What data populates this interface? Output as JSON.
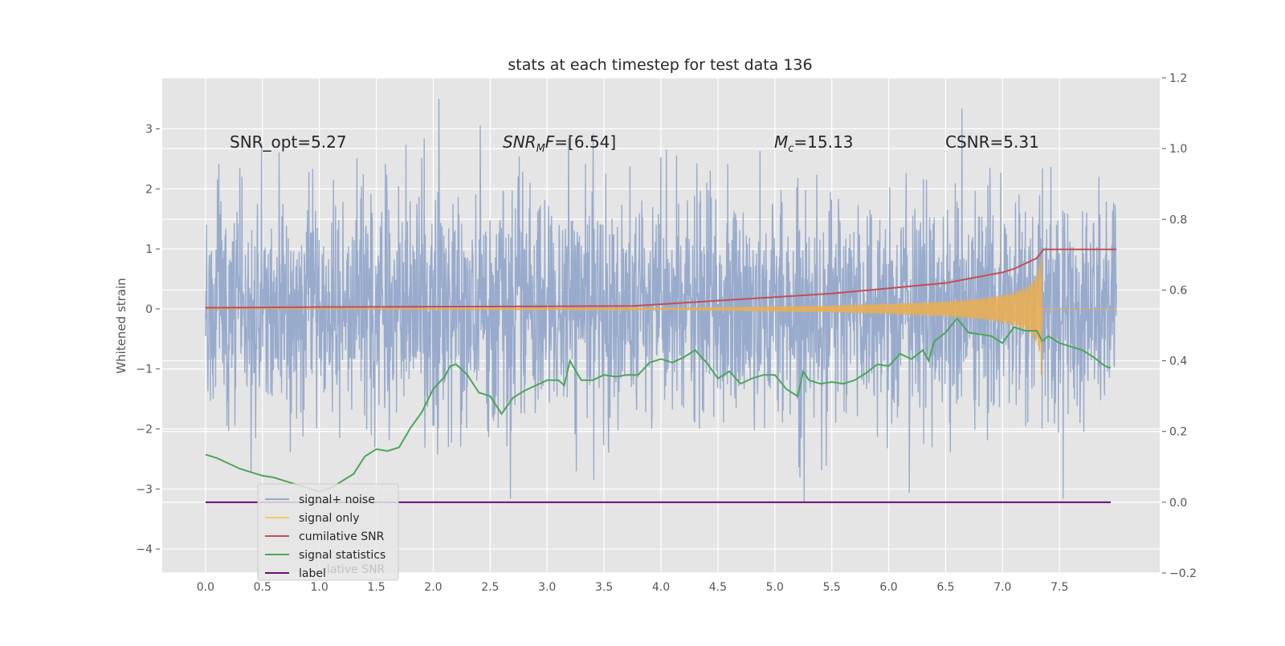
{
  "chart_data": {
    "type": "line",
    "title": "stats at each timestep for test data 136",
    "ylabel": "Whitened strain",
    "xlabel": "",
    "xlim": [
      -0.38,
      8.38
    ],
    "ylim": [
      -4.4,
      3.85
    ],
    "y2lim": [
      -0.2,
      1.2
    ],
    "x_ticks": [
      "0.0",
      "0.5",
      "1.0",
      "1.5",
      "2.0",
      "2.5",
      "3.0",
      "3.5",
      "4.0",
      "4.5",
      "5.0",
      "5.5",
      "6.0",
      "6.5",
      "7.0",
      "7.5"
    ],
    "y_ticks": [
      "−4",
      "−3",
      "−2",
      "−1",
      "0",
      "1",
      "2",
      "3"
    ],
    "y2_ticks": [
      "−0.2",
      "0.0",
      "0.2",
      "0.4",
      "0.6",
      "0.8",
      "1.0",
      "1.2"
    ],
    "grid": true,
    "legend_position": "lower-left",
    "annotations": {
      "snr_opt": "SNR_opt=5.27",
      "snr_mf_label": "SNR",
      "snr_mf_sub": "M",
      "snr_mf_f": "F",
      "snr_mf_value": "=[6.54]",
      "mc_label": "M",
      "mc_sub": "c",
      "mc_value": "=15.13",
      "csnr": "CSNR=5.31"
    },
    "legend": [
      {
        "label": "signal+ noise",
        "color": "#94a8cb"
      },
      {
        "label": "signal only",
        "color": "#f5c85a"
      },
      {
        "label": "cumilative SNR",
        "color": "#c44e52"
      },
      {
        "label": "signal statistics",
        "color": "#4ca55a"
      },
      {
        "label": "label",
        "color": "#6a0a80"
      }
    ],
    "legend_ghost_text": "lative SNR",
    "series": [
      {
        "name": "signal+ noise",
        "axis": "left",
        "color": "#94a8cb",
        "x_range": [
          0.0,
          8.0
        ],
        "y_range": [
          -4.05,
          3.5
        ],
        "note": "dense noise band, typical range about -1.7 to 1.6"
      },
      {
        "name": "signal only",
        "axis": "left",
        "color": "#e8ae55",
        "x": [
          0.0,
          3.6,
          4.5,
          5.5,
          6.0,
          6.5,
          6.8,
          7.0,
          7.1,
          7.2,
          7.25,
          7.3,
          7.34,
          7.35,
          8.0
        ],
        "amplitude": [
          0.0,
          0.01,
          0.03,
          0.06,
          0.09,
          0.13,
          0.18,
          0.24,
          0.29,
          0.37,
          0.44,
          0.58,
          0.85,
          0.0,
          0.0
        ]
      },
      {
        "name": "cumilative SNR",
        "axis": "right",
        "color": "#c44e52",
        "x": [
          0.0,
          1.0,
          2.0,
          3.0,
          3.75,
          4.0,
          4.5,
          5.0,
          5.5,
          6.0,
          6.5,
          6.75,
          7.0,
          7.1,
          7.2,
          7.3,
          7.36,
          8.0
        ],
        "y": [
          0.55,
          0.552,
          0.553,
          0.554,
          0.555,
          0.56,
          0.57,
          0.58,
          0.59,
          0.605,
          0.62,
          0.635,
          0.65,
          0.66,
          0.675,
          0.69,
          0.715,
          0.715
        ]
      },
      {
        "name": "signal statistics",
        "axis": "right",
        "color": "#4ca55a",
        "x": [
          0.0,
          0.1,
          0.2,
          0.3,
          0.4,
          0.5,
          0.6,
          0.7,
          0.8,
          0.9,
          1.0,
          1.1,
          1.2,
          1.3,
          1.4,
          1.5,
          1.6,
          1.7,
          1.8,
          1.9,
          2.0,
          2.1,
          2.15,
          2.2,
          2.3,
          2.4,
          2.5,
          2.55,
          2.6,
          2.7,
          2.8,
          2.9,
          3.0,
          3.1,
          3.15,
          3.2,
          3.3,
          3.4,
          3.5,
          3.6,
          3.7,
          3.8,
          3.9,
          4.0,
          4.1,
          4.2,
          4.3,
          4.4,
          4.5,
          4.6,
          4.7,
          4.8,
          4.9,
          5.0,
          5.1,
          5.2,
          5.25,
          5.3,
          5.4,
          5.5,
          5.6,
          5.7,
          5.8,
          5.9,
          6.0,
          6.1,
          6.2,
          6.3,
          6.35,
          6.4,
          6.5,
          6.6,
          6.7,
          6.8,
          6.9,
          7.0,
          7.1,
          7.2,
          7.3,
          7.35,
          7.4,
          7.5,
          7.6,
          7.7,
          7.8,
          7.9,
          7.95
        ],
        "y": [
          0.135,
          0.125,
          0.11,
          0.095,
          0.085,
          0.075,
          0.07,
          0.06,
          0.05,
          0.04,
          0.03,
          0.04,
          0.06,
          0.08,
          0.13,
          0.15,
          0.145,
          0.155,
          0.21,
          0.255,
          0.32,
          0.355,
          0.385,
          0.39,
          0.36,
          0.31,
          0.3,
          0.275,
          0.25,
          0.295,
          0.315,
          0.33,
          0.345,
          0.345,
          0.33,
          0.4,
          0.345,
          0.345,
          0.36,
          0.355,
          0.36,
          0.36,
          0.395,
          0.405,
          0.395,
          0.41,
          0.43,
          0.395,
          0.35,
          0.37,
          0.335,
          0.35,
          0.36,
          0.36,
          0.32,
          0.3,
          0.37,
          0.345,
          0.335,
          0.34,
          0.335,
          0.345,
          0.365,
          0.39,
          0.385,
          0.42,
          0.405,
          0.43,
          0.4,
          0.455,
          0.48,
          0.52,
          0.48,
          0.475,
          0.47,
          0.45,
          0.495,
          0.485,
          0.485,
          0.455,
          0.47,
          0.45,
          0.44,
          0.43,
          0.41,
          0.385,
          0.38
        ]
      },
      {
        "name": "label",
        "axis": "right",
        "color": "#6a0a80",
        "x": [
          0.0,
          7.95
        ],
        "y": [
          0.0,
          0.0
        ]
      }
    ]
  }
}
